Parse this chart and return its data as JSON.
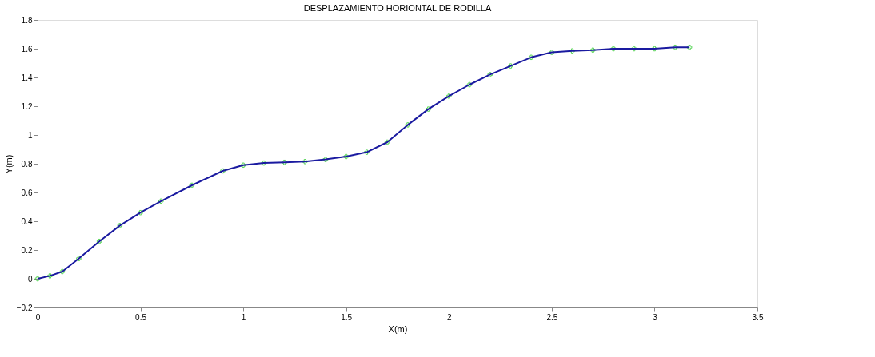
{
  "chart_data": {
    "type": "line",
    "title": "DESPLAZAMIENTO HORIONTAL DE RODILLA",
    "xlabel": "X(m)",
    "ylabel": "Y(m)",
    "x": [
      0,
      0.06,
      0.12,
      0.2,
      0.3,
      0.4,
      0.5,
      0.6,
      0.75,
      0.9,
      1.0,
      1.1,
      1.2,
      1.3,
      1.4,
      1.5,
      1.6,
      1.7,
      1.8,
      1.9,
      2.0,
      2.1,
      2.2,
      2.3,
      2.4,
      2.5,
      2.6,
      2.7,
      2.8,
      2.9,
      3.0,
      3.1,
      3.17
    ],
    "series": [
      {
        "type": "scatter",
        "marker": "cross",
        "color": "#33cc33",
        "values": [
          0,
          0.02,
          0.05,
          0.14,
          0.26,
          0.37,
          0.46,
          0.54,
          0.65,
          0.75,
          0.79,
          0.805,
          0.81,
          0.815,
          0.83,
          0.85,
          0.88,
          0.95,
          1.07,
          1.18,
          1.27,
          1.35,
          1.42,
          1.48,
          1.54,
          1.575,
          1.585,
          1.59,
          1.6,
          1.6,
          1.6,
          1.61,
          1.61
        ]
      },
      {
        "type": "line",
        "color": "#1a1aa0",
        "line_style": "solid",
        "values": [
          0,
          0.02,
          0.05,
          0.14,
          0.26,
          0.37,
          0.46,
          0.54,
          0.65,
          0.75,
          0.79,
          0.805,
          0.81,
          0.815,
          0.83,
          0.85,
          0.88,
          0.95,
          1.07,
          1.18,
          1.27,
          1.35,
          1.42,
          1.48,
          1.54,
          1.575,
          1.585,
          1.59,
          1.6,
          1.6,
          1.6,
          1.61,
          1.61
        ]
      }
    ],
    "xlim": [
      0,
      3.5
    ],
    "xticks": [
      0,
      0.5,
      1,
      1.5,
      2,
      2.5,
      3,
      3.5
    ],
    "ylim": [
      -0.2,
      1.8
    ],
    "yticks": [
      -0.2,
      0,
      0.2,
      0.4,
      0.6,
      0.8,
      1,
      1.2,
      1.4,
      1.6,
      1.8
    ],
    "grid": false
  }
}
